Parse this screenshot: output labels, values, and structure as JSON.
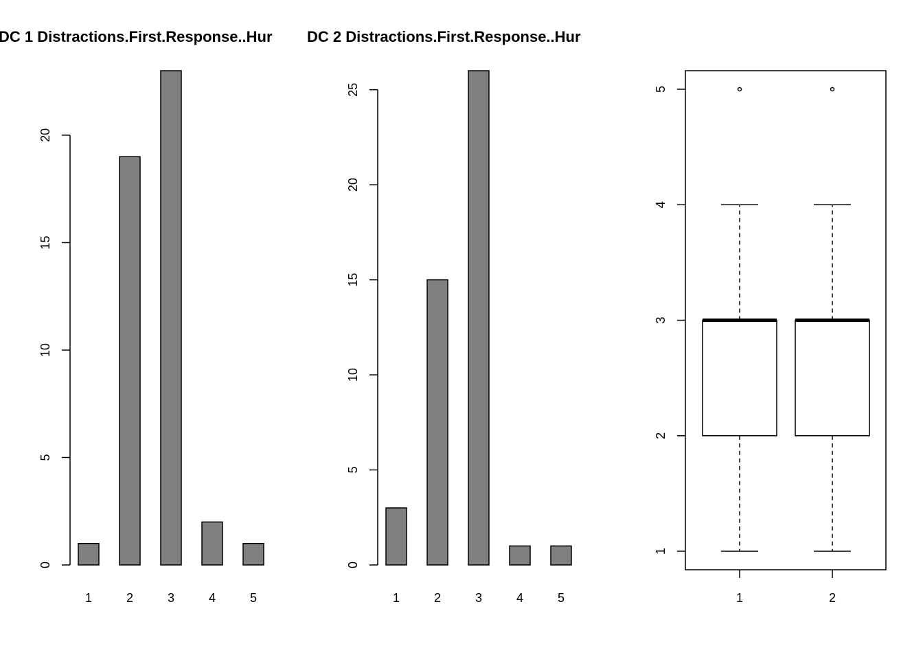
{
  "style": {
    "bar_fill": "#808080",
    "stroke": "#000000",
    "background": "#ffffff",
    "box_fill": "#ffffff"
  },
  "chart_data": [
    {
      "type": "bar",
      "title": "DC 1 Distractions.First.Response..Hur",
      "categories": [
        "1",
        "2",
        "3",
        "4",
        "5"
      ],
      "values": [
        1,
        19,
        23,
        2,
        1
      ],
      "ylim": [
        0,
        23
      ],
      "yticks": [
        0,
        5,
        10,
        15,
        20
      ],
      "ytick_labels": [
        "0",
        "5",
        "10",
        "15",
        "20"
      ]
    },
    {
      "type": "bar",
      "title": "DC 2 Distractions.First.Response..Hur",
      "categories": [
        "1",
        "2",
        "3",
        "4",
        "5"
      ],
      "values": [
        3,
        15,
        26,
        1,
        1
      ],
      "ylim": [
        0,
        26
      ],
      "yticks": [
        0,
        5,
        10,
        15,
        20,
        25
      ],
      "ytick_labels": [
        "0",
        "5",
        "10",
        "15",
        "20",
        "25"
      ]
    },
    {
      "type": "box",
      "categories": [
        "1",
        "2"
      ],
      "ylim": [
        1,
        5
      ],
      "yticks": [
        1,
        2,
        3,
        4,
        5
      ],
      "ytick_labels": [
        "1",
        "2",
        "3",
        "4",
        "5"
      ],
      "boxes": [
        {
          "name": "1",
          "whisker_low": 1,
          "q1": 2,
          "median": 3,
          "q3": 3,
          "whisker_high": 4,
          "outliers": [
            5
          ]
        },
        {
          "name": "2",
          "whisker_low": 1,
          "q1": 2,
          "median": 3,
          "q3": 3,
          "whisker_high": 4,
          "outliers": [
            5
          ]
        }
      ]
    }
  ]
}
